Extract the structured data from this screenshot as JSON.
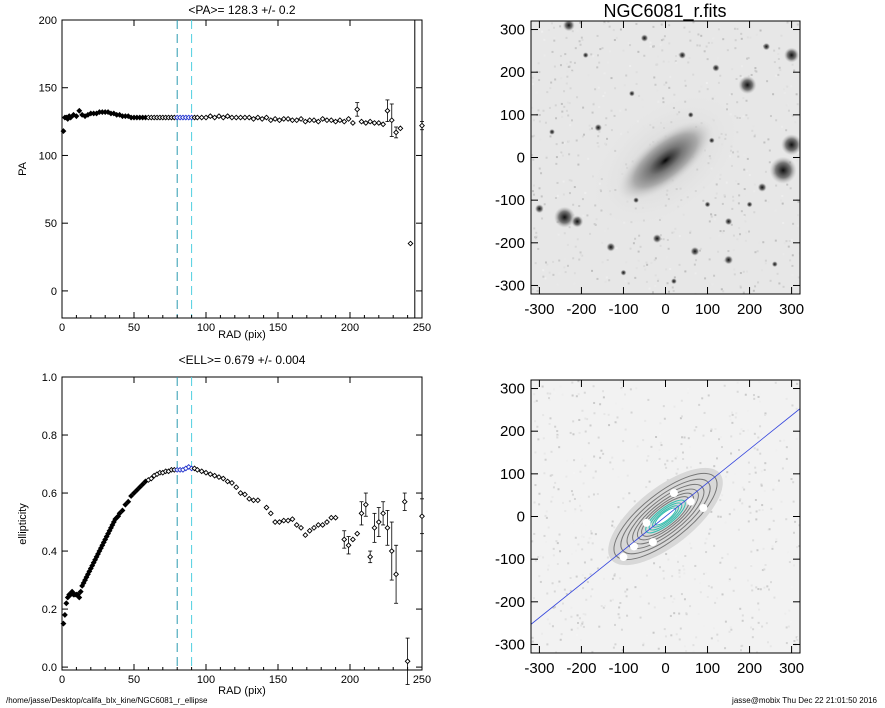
{
  "footer": {
    "path": "/home/jasse/Desktop/califa_blx_kine/NGC6081_r_ellipse",
    "user_date": "jasse@mobix  Thu Dec 22 21:01:50 2016"
  },
  "colors": {
    "points": "#000000",
    "highlight": "#2233cc",
    "dash_left": "#2c9bb0",
    "dash_right": "#4fcfe0",
    "major_axis_line": "#3344dd",
    "contours": "#777777",
    "contour_accent": "#30c0b0"
  },
  "chart_data": [
    {
      "type": "scatter",
      "title": "<PA>= 128.3 +/-   0.2",
      "xlabel": "RAD (pix)",
      "ylabel": "PA",
      "xlim": [
        0,
        250
      ],
      "ylim": [
        -20,
        200
      ],
      "xticks": [
        0,
        50,
        100,
        150,
        200,
        250
      ],
      "yticks": [
        0,
        50,
        100,
        150,
        200
      ],
      "vlines": [
        80,
        90,
        245
      ],
      "highlight_range": [
        80,
        90
      ],
      "points": [
        [
          1,
          118
        ],
        [
          2,
          128
        ],
        [
          3,
          128
        ],
        [
          4,
          127
        ],
        [
          5,
          129
        ],
        [
          6,
          128
        ],
        [
          8,
          130
        ],
        [
          10,
          129
        ],
        [
          12,
          133
        ],
        [
          14,
          130
        ],
        [
          16,
          129
        ],
        [
          18,
          130
        ],
        [
          20,
          131
        ],
        [
          22,
          131
        ],
        [
          24,
          131
        ],
        [
          26,
          132
        ],
        [
          28,
          132
        ],
        [
          30,
          132
        ],
        [
          32,
          132
        ],
        [
          34,
          131
        ],
        [
          36,
          131
        ],
        [
          38,
          130
        ],
        [
          40,
          130
        ],
        [
          42,
          129
        ],
        [
          44,
          129
        ],
        [
          46,
          129
        ],
        [
          48,
          128
        ],
        [
          50,
          128
        ],
        [
          52,
          128
        ],
        [
          54,
          128
        ],
        [
          56,
          128
        ],
        [
          58,
          128
        ],
        [
          60,
          128
        ],
        [
          62,
          128
        ],
        [
          64,
          128
        ],
        [
          66,
          128
        ],
        [
          68,
          128
        ],
        [
          70,
          128
        ],
        [
          72,
          128
        ],
        [
          74,
          128
        ],
        [
          76,
          128
        ],
        [
          78,
          128
        ],
        [
          80,
          128
        ],
        [
          82,
          128
        ],
        [
          84,
          128
        ],
        [
          86,
          128
        ],
        [
          88,
          128
        ],
        [
          90,
          128
        ],
        [
          92,
          128
        ],
        [
          94,
          128
        ],
        [
          97,
          128
        ],
        [
          100,
          128
        ],
        [
          103,
          129
        ],
        [
          106,
          128
        ],
        [
          109,
          129
        ],
        [
          112,
          128
        ],
        [
          115,
          129
        ],
        [
          118,
          128
        ],
        [
          121,
          128
        ],
        [
          124,
          128
        ],
        [
          127,
          128
        ],
        [
          130,
          128
        ],
        [
          133,
          127
        ],
        [
          136,
          128
        ],
        [
          139,
          127
        ],
        [
          142,
          128
        ],
        [
          145,
          126
        ],
        [
          148,
          127
        ],
        [
          151,
          126
        ],
        [
          154,
          127
        ],
        [
          157,
          127
        ],
        [
          160,
          126
        ],
        [
          163,
          126
        ],
        [
          166,
          127
        ],
        [
          169,
          125
        ],
        [
          172,
          126
        ],
        [
          175,
          126
        ],
        [
          178,
          125
        ],
        [
          181,
          127
        ],
        [
          184,
          126
        ],
        [
          187,
          126
        ],
        [
          190,
          125
        ],
        [
          193,
          126
        ],
        [
          196,
          125
        ],
        [
          199,
          127
        ],
        [
          202,
          124
        ],
        [
          205,
          134
        ],
        [
          208,
          125
        ],
        [
          211,
          124
        ],
        [
          214,
          125
        ],
        [
          217,
          124
        ],
        [
          220,
          124
        ],
        [
          223,
          123
        ],
        [
          226,
          133
        ],
        [
          229,
          126
        ],
        [
          232,
          117
        ],
        [
          235,
          120
        ],
        [
          242,
          35
        ],
        [
          250,
          122
        ]
      ],
      "errors": [
        [
          205,
          5
        ],
        [
          226,
          8
        ],
        [
          229,
          12
        ],
        [
          232,
          4
        ],
        [
          250,
          3
        ]
      ]
    },
    {
      "type": "scatter",
      "title": "<ELL>= 0.679 +/-  0.004",
      "xlabel": "RAD (pix)",
      "ylabel": "ellipticity",
      "xlim": [
        0,
        250
      ],
      "ylim": [
        -0.01,
        1.0
      ],
      "xticks": [
        0,
        50,
        100,
        150,
        200,
        250
      ],
      "yticks": [
        0.0,
        0.2,
        0.4,
        0.6,
        0.8,
        1.0
      ],
      "vlines": [
        80,
        90
      ],
      "highlight_range": [
        80,
        90
      ],
      "points": [
        [
          1,
          0.15
        ],
        [
          2,
          0.18
        ],
        [
          3,
          0.22
        ],
        [
          4,
          0.24
        ],
        [
          5,
          0.25
        ],
        [
          6,
          0.25
        ],
        [
          7,
          0.26
        ],
        [
          8,
          0.25
        ],
        [
          9,
          0.25
        ],
        [
          10,
          0.25
        ],
        [
          11,
          0.25
        ],
        [
          12,
          0.24
        ],
        [
          13,
          0.26
        ],
        [
          14,
          0.28
        ],
        [
          15,
          0.29
        ],
        [
          16,
          0.3
        ],
        [
          17,
          0.31
        ],
        [
          18,
          0.32
        ],
        [
          19,
          0.33
        ],
        [
          20,
          0.34
        ],
        [
          21,
          0.35
        ],
        [
          22,
          0.36
        ],
        [
          23,
          0.37
        ],
        [
          24,
          0.38
        ],
        [
          25,
          0.39
        ],
        [
          26,
          0.4
        ],
        [
          27,
          0.41
        ],
        [
          28,
          0.42
        ],
        [
          29,
          0.43
        ],
        [
          30,
          0.44
        ],
        [
          31,
          0.45
        ],
        [
          32,
          0.46
        ],
        [
          33,
          0.47
        ],
        [
          34,
          0.48
        ],
        [
          35,
          0.49
        ],
        [
          36,
          0.5
        ],
        [
          37,
          0.51
        ],
        [
          38,
          0.515
        ],
        [
          39,
          0.52
        ],
        [
          40,
          0.53
        ],
        [
          42,
          0.54
        ],
        [
          44,
          0.56
        ],
        [
          46,
          0.57
        ],
        [
          48,
          0.59
        ],
        [
          50,
          0.6
        ],
        [
          52,
          0.61
        ],
        [
          54,
          0.62
        ],
        [
          56,
          0.63
        ],
        [
          58,
          0.64
        ],
        [
          60,
          0.645
        ],
        [
          62,
          0.65
        ],
        [
          64,
          0.66
        ],
        [
          66,
          0.665
        ],
        [
          68,
          0.67
        ],
        [
          70,
          0.67
        ],
        [
          72,
          0.675
        ],
        [
          74,
          0.675
        ],
        [
          76,
          0.68
        ],
        [
          78,
          0.68
        ],
        [
          80,
          0.68
        ],
        [
          82,
          0.68
        ],
        [
          84,
          0.68
        ],
        [
          86,
          0.685
        ],
        [
          88,
          0.69
        ],
        [
          90,
          0.685
        ],
        [
          92,
          0.685
        ],
        [
          94,
          0.68
        ],
        [
          97,
          0.675
        ],
        [
          100,
          0.67
        ],
        [
          103,
          0.665
        ],
        [
          106,
          0.66
        ],
        [
          109,
          0.655
        ],
        [
          112,
          0.65
        ],
        [
          115,
          0.64
        ],
        [
          118,
          0.635
        ],
        [
          121,
          0.62
        ],
        [
          124,
          0.6
        ],
        [
          127,
          0.595
        ],
        [
          130,
          0.58
        ],
        [
          133,
          0.575
        ],
        [
          136,
          0.575
        ],
        [
          142,
          0.55
        ],
        [
          145,
          0.53
        ],
        [
          148,
          0.5
        ],
        [
          151,
          0.5
        ],
        [
          154,
          0.505
        ],
        [
          157,
          0.505
        ],
        [
          160,
          0.51
        ],
        [
          163,
          0.49
        ],
        [
          166,
          0.48
        ],
        [
          169,
          0.455
        ],
        [
          172,
          0.47
        ],
        [
          175,
          0.48
        ],
        [
          178,
          0.49
        ],
        [
          181,
          0.49
        ],
        [
          184,
          0.5
        ],
        [
          187,
          0.515
        ],
        [
          190,
          0.515
        ],
        [
          196,
          0.44
        ],
        [
          199,
          0.42
        ],
        [
          202,
          0.44
        ],
        [
          205,
          0.46
        ],
        [
          208,
          0.53
        ],
        [
          211,
          0.56
        ],
        [
          214,
          0.38
        ],
        [
          217,
          0.48
        ],
        [
          220,
          0.5
        ],
        [
          223,
          0.53
        ],
        [
          226,
          0.48
        ],
        [
          229,
          0.4
        ],
        [
          232,
          0.32
        ],
        [
          238,
          0.57
        ],
        [
          240,
          0.02
        ],
        [
          250,
          0.52
        ]
      ],
      "errors": [
        [
          196,
          0.03
        ],
        [
          199,
          0.03
        ],
        [
          208,
          0.04
        ],
        [
          211,
          0.04
        ],
        [
          214,
          0.02
        ],
        [
          217,
          0.05
        ],
        [
          220,
          0.05
        ],
        [
          223,
          0.04
        ],
        [
          226,
          0.06
        ],
        [
          229,
          0.1
        ],
        [
          232,
          0.1
        ],
        [
          238,
          0.03
        ],
        [
          240,
          0.08
        ],
        [
          250,
          0.06
        ]
      ]
    }
  ],
  "images": [
    {
      "title": "NGC6081_r.fits",
      "xticks": [
        -300,
        -200,
        -100,
        0,
        100,
        200,
        300
      ],
      "yticks": [
        -300,
        -200,
        -100,
        0,
        100,
        200,
        300
      ],
      "lim": [
        -320,
        320
      ],
      "galaxy": {
        "pa": 128.3,
        "ell": 0.679,
        "major": 120
      },
      "stars": [
        [
          -240,
          -140,
          14
        ],
        [
          -210,
          -150,
          8
        ],
        [
          280,
          -30,
          18
        ],
        [
          300,
          30,
          14
        ],
        [
          195,
          170,
          12
        ],
        [
          300,
          240,
          10
        ],
        [
          -230,
          310,
          8
        ],
        [
          -300,
          -120,
          6
        ],
        [
          -20,
          -190,
          6
        ],
        [
          70,
          -220,
          6
        ],
        [
          230,
          -70,
          6
        ],
        [
          150,
          -240,
          6
        ],
        [
          -130,
          -210,
          6
        ],
        [
          -160,
          70,
          5
        ],
        [
          40,
          240,
          5
        ],
        [
          -50,
          280,
          5
        ],
        [
          120,
          210,
          5
        ],
        [
          110,
          40,
          4
        ],
        [
          60,
          100,
          4
        ],
        [
          -80,
          150,
          4
        ],
        [
          150,
          -150,
          5
        ],
        [
          -270,
          60,
          4
        ],
        [
          240,
          260,
          5
        ],
        [
          -190,
          240,
          4
        ],
        [
          20,
          -290,
          4
        ],
        [
          -100,
          -270,
          4
        ],
        [
          260,
          -250,
          4
        ],
        [
          200,
          -110,
          4
        ],
        [
          -70,
          -100,
          4
        ],
        [
          100,
          -110,
          4
        ]
      ]
    },
    {
      "title": "",
      "xticks": [
        -300,
        -200,
        -100,
        0,
        100,
        200,
        300
      ],
      "yticks": [
        -300,
        -200,
        -100,
        0,
        100,
        200,
        300
      ],
      "lim": [
        -320,
        320
      ],
      "pa": 128.3,
      "ell": 0.679,
      "contours": [
        150,
        130,
        112,
        96,
        82,
        70,
        58,
        48,
        38,
        30
      ]
    }
  ]
}
